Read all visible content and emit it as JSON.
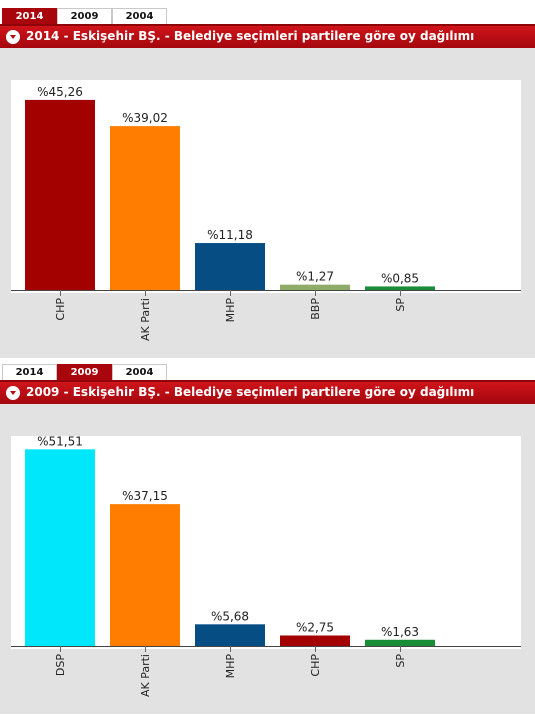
{
  "tabs": [
    "2014",
    "2009",
    "2004"
  ],
  "colors": {
    "header_red": "#b00a10",
    "chart_background": "#e2e2e2",
    "plot_background": "#ffffff"
  },
  "chart_data": [
    {
      "type": "bar",
      "active_tab": "2014",
      "title": "2014 - Eskişehir BŞ. - Belediye seçimleri partilere göre oy dağılımı",
      "categories": [
        "CHP",
        "AK Parti",
        "MHP",
        "BBP",
        "SP"
      ],
      "values": [
        45.26,
        39.02,
        11.18,
        1.27,
        0.85
      ],
      "value_labels": [
        "%45,26",
        "%39,02",
        "%11,18",
        "%1,27",
        "%0,85"
      ],
      "colors": [
        "#a30000",
        "#ff7d00",
        "#064d84",
        "#8eab68",
        "#198c37"
      ],
      "ylim": [
        0,
        50
      ],
      "grid": false,
      "xlabel": "",
      "ylabel": ""
    },
    {
      "type": "bar",
      "active_tab": "2009",
      "title": "2009 - Eskişehir BŞ. - Belediye seçimleri partilere göre oy dağılımı",
      "categories": [
        "DSP",
        "AK Parti",
        "MHP",
        "CHP",
        "SP"
      ],
      "values": [
        51.51,
        37.15,
        5.68,
        2.75,
        1.63
      ],
      "value_labels": [
        "%51,51",
        "%37,15",
        "%5,68",
        "%2,75",
        "%1,63"
      ],
      "colors": [
        "#00e6fb",
        "#ff7d00",
        "#064d84",
        "#a30000",
        "#198c37"
      ],
      "ylim": [
        0,
        55
      ],
      "grid": false,
      "xlabel": "",
      "ylabel": ""
    }
  ]
}
